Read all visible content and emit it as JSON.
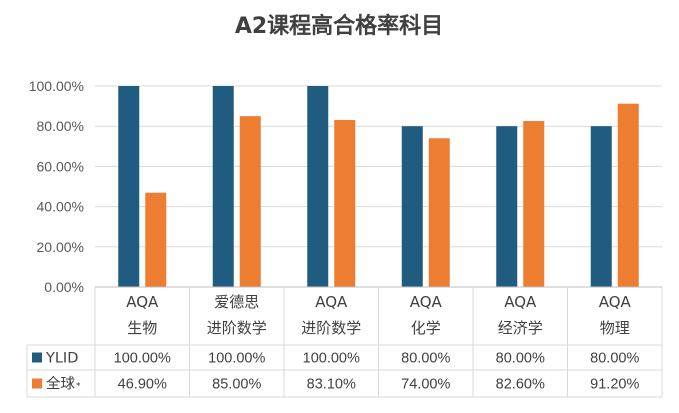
{
  "chart_data": {
    "type": "bar",
    "title": "A2课程高合格率科目",
    "categories": [
      [
        "AQA",
        "生物"
      ],
      [
        "爱德思",
        "进阶数学"
      ],
      [
        "AQA",
        "进阶数学"
      ],
      [
        "AQA",
        "化学"
      ],
      [
        "AQA",
        "经济学"
      ],
      [
        "AQA",
        "物理"
      ]
    ],
    "series": [
      {
        "name": "YLID",
        "color": "#1F5C80",
        "values": [
          100,
          100,
          100,
          80,
          80,
          80
        ],
        "labels": [
          "100.00%",
          "100.00%",
          "100.00%",
          "80.00%",
          "80.00%",
          "80.00%"
        ]
      },
      {
        "name": "全球",
        "name_suffix": "*",
        "color": "#ED7D31",
        "values": [
          46.9,
          85.0,
          83.1,
          74.0,
          82.6,
          91.2
        ],
        "labels": [
          "46.90%",
          "85.00%",
          "83.10%",
          "74.00%",
          "82.60%",
          "91.20%"
        ]
      }
    ],
    "y_ticks": [
      "0.00%",
      "20.00%",
      "40.00%",
      "60.00%",
      "80.00%",
      "100.00%"
    ],
    "ylim": [
      0,
      100
    ],
    "grid": true,
    "legend": "data-table"
  }
}
